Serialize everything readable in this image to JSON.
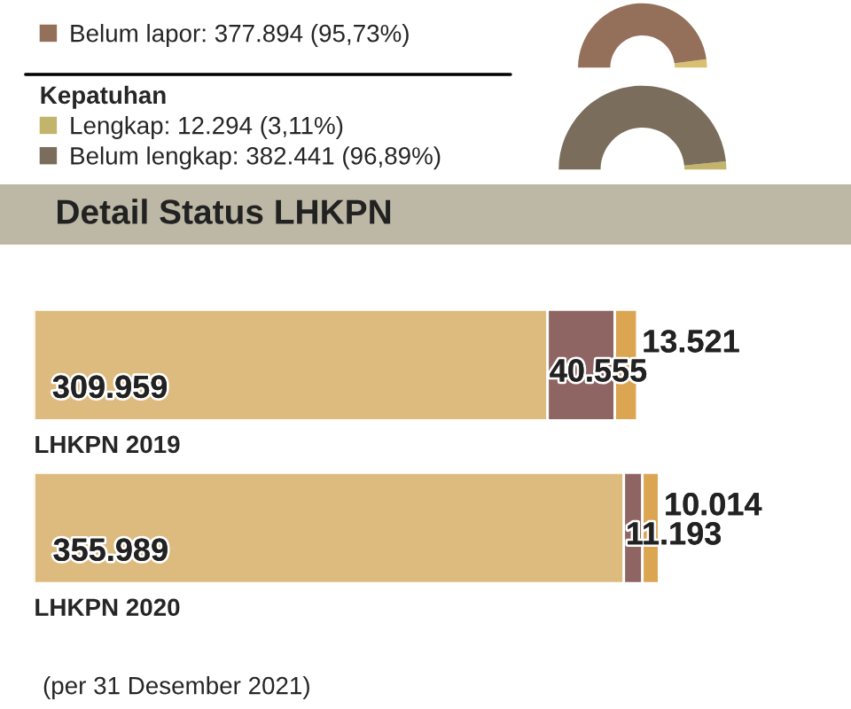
{
  "chart_data": [
    {
      "type": "donut",
      "categories": [
        null,
        "Belum lapor"
      ],
      "values": [
        4.27,
        95.73
      ],
      "value_labels": [
        null,
        "377.894 (95,73%)"
      ],
      "colors": [
        "#d8c070",
        "#94705a"
      ],
      "legend": "left"
    },
    {
      "type": "donut",
      "title": "Kepatuhan",
      "categories": [
        "Lengkap",
        "Belum lengkap"
      ],
      "values": [
        12294,
        382441
      ],
      "value_labels": [
        "12.294 (3,11%)",
        "382.441 (96,89%)"
      ],
      "colors": [
        "#c2b46a",
        "#7a6d5c"
      ],
      "legend": "left"
    },
    {
      "type": "bar",
      "orientation": "horizontal",
      "stacked": true,
      "title": "Detail Status LHKPN",
      "categories": [
        "LHKPN 2019",
        "LHKPN 2020"
      ],
      "series": [
        {
          "color": "#ddbb7e",
          "values": [
            309959,
            355989
          ],
          "value_labels": [
            "309.959",
            "355.989"
          ]
        },
        {
          "color": "#8e6563",
          "values": [
            40555,
            11193
          ],
          "value_labels": [
            "40.555",
            "11.193"
          ]
        },
        {
          "color": "#dca552",
          "values": [
            13521,
            10014
          ],
          "value_labels": [
            "13.521",
            "10.014"
          ]
        }
      ],
      "annotations": [
        "(per 31 Desember 2021)"
      ]
    }
  ]
}
